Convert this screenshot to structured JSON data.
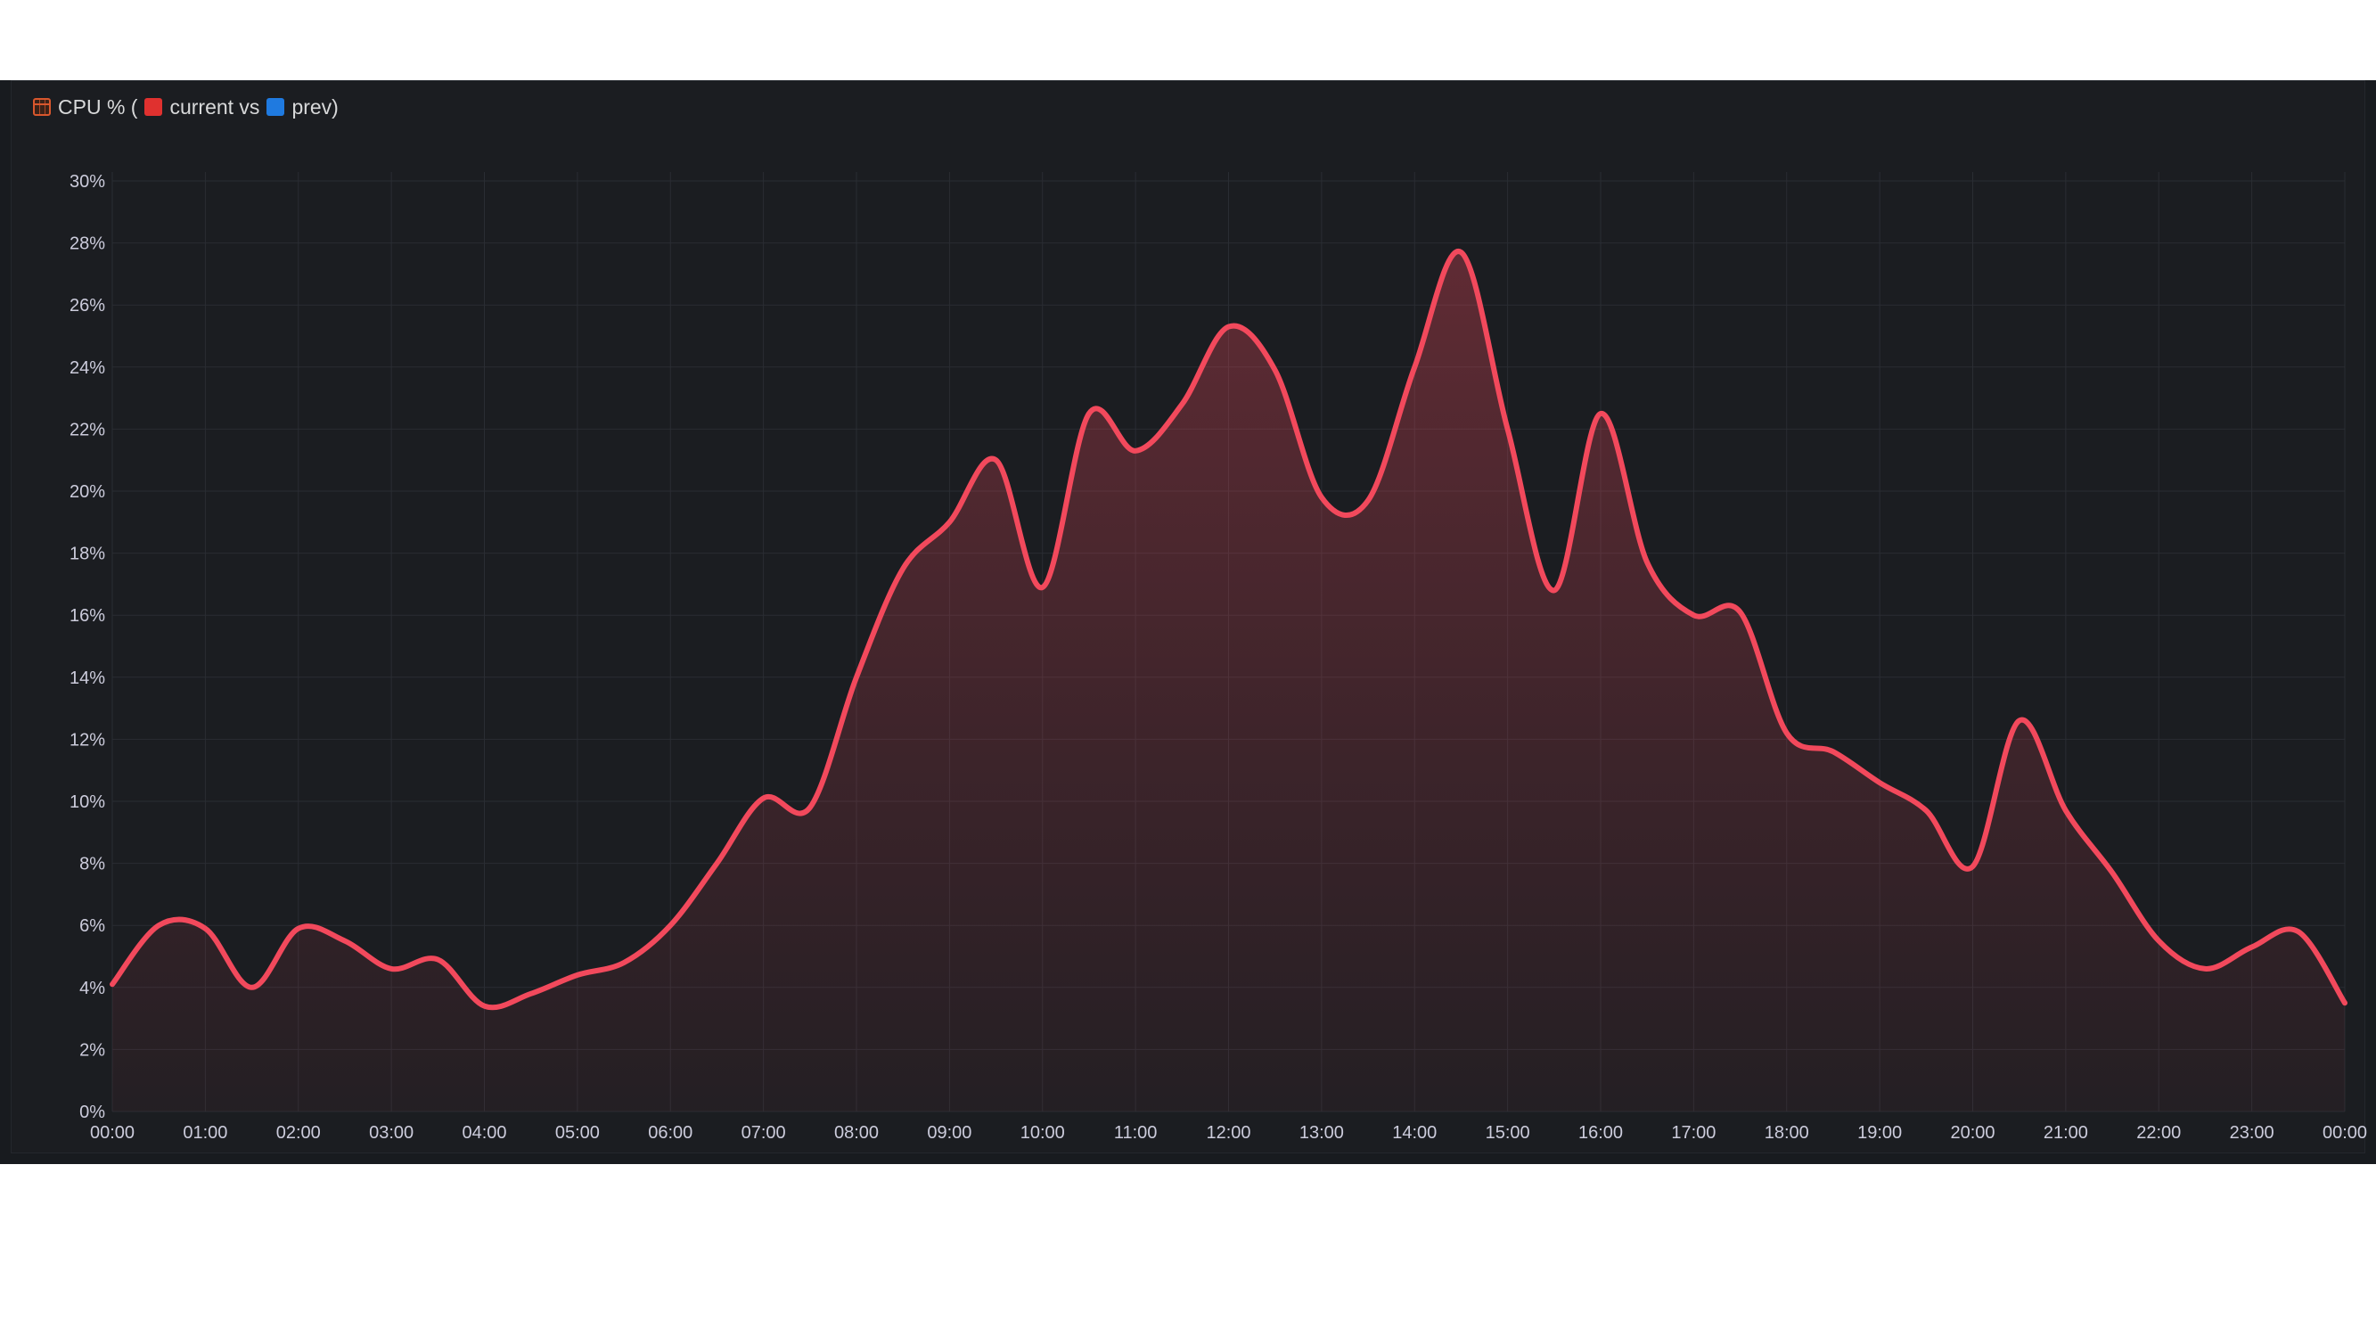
{
  "panel": {
    "title_prefix": "CPU % (",
    "title_current": "current vs",
    "title_prev": "prev)",
    "icon_calendar": "calendar-icon",
    "icon_current": "red-square-icon",
    "icon_prev": "blue-square-icon"
  },
  "colors": {
    "background": "#181b1f",
    "line": "#f2495c",
    "grid": "#2a2d33",
    "text": "#ccccdc"
  },
  "chart_data": {
    "type": "area",
    "title": "CPU % (🟥 current vs 🟦 prev)",
    "xlabel": "",
    "ylabel": "",
    "ylim": [
      0,
      30
    ],
    "y_ticks": [
      "0%",
      "2%",
      "4%",
      "6%",
      "8%",
      "10%",
      "12%",
      "14%",
      "16%",
      "18%",
      "20%",
      "22%",
      "24%",
      "26%",
      "28%",
      "30%"
    ],
    "y_tick_values": [
      0,
      2,
      4,
      6,
      8,
      10,
      12,
      14,
      16,
      18,
      20,
      22,
      24,
      26,
      28,
      30
    ],
    "x_ticks": [
      "00:00",
      "01:00",
      "02:00",
      "03:00",
      "04:00",
      "05:00",
      "06:00",
      "07:00",
      "08:00",
      "09:00",
      "10:00",
      "11:00",
      "12:00",
      "13:00",
      "14:00",
      "15:00",
      "16:00",
      "17:00",
      "18:00",
      "19:00",
      "20:00",
      "21:00",
      "22:00",
      "23:00",
      "00:00"
    ],
    "x_tick_hours": [
      0,
      1,
      2,
      3,
      4,
      5,
      6,
      7,
      8,
      9,
      10,
      11,
      12,
      13,
      14,
      15,
      16,
      17,
      18,
      19,
      20,
      21,
      22,
      23,
      24
    ],
    "xlim_hours": [
      0,
      24
    ],
    "grid": true,
    "series": [
      {
        "hours": [
          0,
          0.5,
          1,
          1.5,
          2,
          2.5,
          3,
          3.5,
          4,
          4.5,
          5,
          5.5,
          6,
          6.5,
          7,
          7.5,
          8,
          8.5,
          9,
          9.5,
          10,
          10.5,
          11,
          11.5,
          12,
          12.5,
          13,
          13.5,
          14,
          14.5,
          15,
          15.5,
          16,
          16.5,
          17,
          17.5,
          18,
          18.5,
          19,
          19.5,
          20,
          20.5,
          21,
          21.5,
          22,
          22.5,
          23,
          23.5,
          24
        ],
        "values": [
          4.1,
          6.0,
          5.9,
          4.0,
          5.9,
          5.5,
          4.6,
          4.9,
          3.4,
          3.8,
          4.4,
          4.8,
          6.0,
          8.0,
          10.1,
          9.8,
          14.0,
          17.5,
          19.0,
          21.0,
          16.9,
          22.5,
          21.3,
          22.8,
          25.3,
          23.9,
          19.8,
          19.7,
          24.0,
          27.7,
          22.0,
          16.8,
          22.5,
          17.7,
          16.0,
          16.1,
          12.2,
          11.6,
          10.6,
          9.7,
          7.9,
          12.6,
          9.7,
          7.7,
          5.5,
          4.6,
          5.3,
          5.8,
          3.5
        ]
      }
    ]
  }
}
